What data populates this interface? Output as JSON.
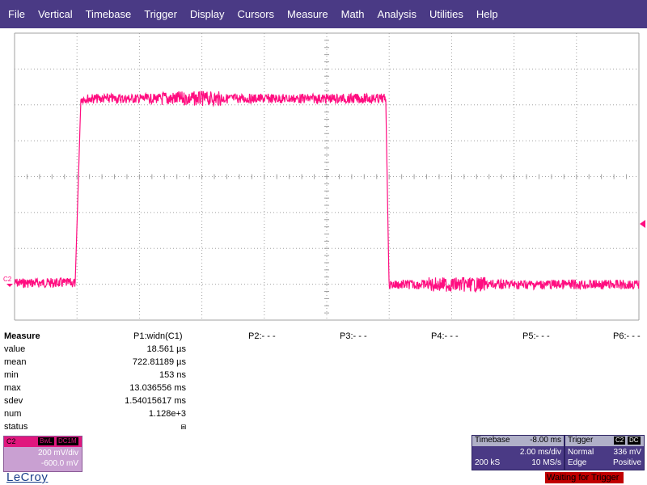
{
  "menu": [
    "File",
    "Vertical",
    "Timebase",
    "Trigger",
    "Display",
    "Cursors",
    "Measure",
    "Math",
    "Analysis",
    "Utilities",
    "Help"
  ],
  "colors": {
    "trace": "#ff0d80",
    "menu_bg": "#4a3a85",
    "grid": "#a0a0a0"
  },
  "channel_marker": "C2",
  "measure": {
    "title": "Measure",
    "rows": [
      "value",
      "mean",
      "min",
      "max",
      "sdev",
      "num",
      "status"
    ],
    "p1_name": "P1:widn(C1)",
    "p1_values": [
      "18.561 µs",
      "722.81189 µs",
      "153 ns",
      "13.036556 ms",
      "1.54015617 ms",
      "1.128e+3",
      "⩎"
    ],
    "params": [
      "P2:- - -",
      "P3:- - -",
      "P4:- - -",
      "P5:- - -",
      "P6:- - -"
    ]
  },
  "channel_box": {
    "name": "C2",
    "tags": [
      "BwL",
      "DC1M"
    ],
    "vdiv": "200 mV/div",
    "offset": "-600.0 mV"
  },
  "logo": "LeCroy",
  "timebase": {
    "label": "Timebase",
    "delay": "-8.00 ms",
    "tdiv": "2.00 ms/div",
    "samples": "200 kS",
    "rate": "10 MS/s"
  },
  "trigger": {
    "label": "Trigger",
    "tags": [
      "C2",
      "DC"
    ],
    "mode": "Normal",
    "level": "336 mV",
    "type": "Edge",
    "slope": "Positive"
  },
  "status_message": "Waiting for Trigger"
}
